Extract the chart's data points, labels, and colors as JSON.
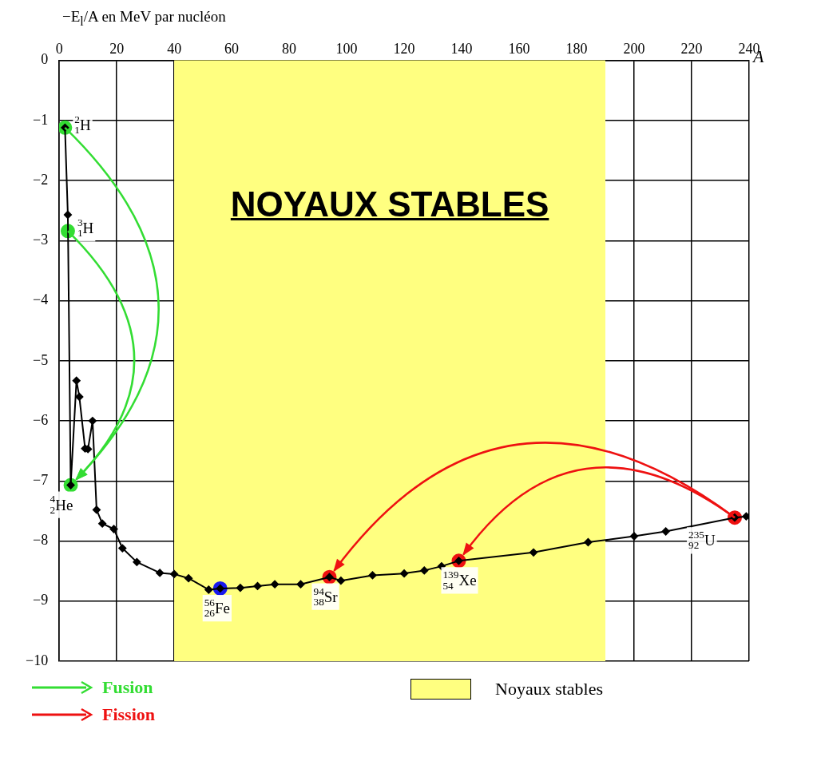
{
  "chart_data": {
    "type": "line",
    "xlabel": "A",
    "ylabel": "−E$_{l}$/A en MeV par nucléon",
    "xlim": [
      0,
      240
    ],
    "xticks": [
      0,
      20,
      40,
      60,
      80,
      100,
      120,
      140,
      160,
      180,
      200,
      220,
      240
    ],
    "ylim": [
      -10,
      0
    ],
    "yticks": [
      -10,
      -9,
      -8,
      -7,
      -6,
      -5,
      -4,
      -3,
      -2,
      -1,
      0
    ],
    "grid": true,
    "legend": "bottom",
    "marker": "diamond",
    "series": [
      {
        "color": "#000000",
        "x": [
          2,
          3,
          4,
          6,
          7,
          9,
          10,
          11.6,
          13,
          15,
          19,
          22,
          27,
          35,
          40,
          45,
          52,
          56,
          63,
          69,
          75,
          84,
          94,
          98,
          109,
          120,
          127,
          133,
          139,
          165,
          184,
          200,
          211,
          235,
          239
        ],
        "values": [
          -1.12,
          -2.57,
          -7.07,
          -5.33,
          -5.6,
          -6.46,
          -6.47,
          -6.0,
          -7.48,
          -7.71,
          -7.8,
          -8.12,
          -8.35,
          -8.53,
          -8.55,
          -8.62,
          -8.81,
          -8.79,
          -8.78,
          -8.75,
          -8.72,
          -8.72,
          -8.6,
          -8.66,
          -8.57,
          -8.54,
          -8.49,
          -8.42,
          -8.33,
          -8.19,
          -8.02,
          -7.92,
          -7.84,
          -7.61,
          -7.59
        ]
      },
      {
        "type": "scatter",
        "marker": "circle",
        "name": "Fusion",
        "color": "#33dd33",
        "x": [
          2,
          3,
          4
        ],
        "values": [
          -1.12,
          -2.84,
          -7.07
        ]
      },
      {
        "type": "scatter",
        "marker": "circle",
        "name": "Fission",
        "color": "#ee1111",
        "x": [
          94,
          139,
          235
        ],
        "values": [
          -8.6,
          -8.33,
          -7.61
        ]
      },
      {
        "type": "scatter",
        "marker": "circle",
        "color": "#1a1aee",
        "x": [
          56
        ],
        "values": [
          -8.79
        ]
      }
    ],
    "bands": [
      {
        "axis": "x",
        "from": 40,
        "to": 190,
        "label": "Noyaux stables",
        "color": "#ffff80"
      }
    ],
    "annotations": [
      "NOYAUX STABLES",
      {
        "text": "$^{2}$$_{1}$H",
        "x": 2,
        "y": -1.12
      },
      {
        "text": "$^{3}$$_{1}$H",
        "x": 3,
        "y": -2.84
      },
      {
        "text": "$^{4}$$_{2}$He",
        "x": 4,
        "y": -7.07
      },
      {
        "text": "$^{56}$$_{26}$Fe",
        "x": 56,
        "y": -8.79
      },
      {
        "text": "$^{94}$$_{38}$Sr",
        "x": 94,
        "y": -8.6
      },
      {
        "text": "$^{139}$$_{54}$Xe",
        "x": 139,
        "y": -8.33
      },
      {
        "text": "$^{235}$$_{92}$U",
        "x": 235,
        "y": -7.61
      }
    ]
  }
}
